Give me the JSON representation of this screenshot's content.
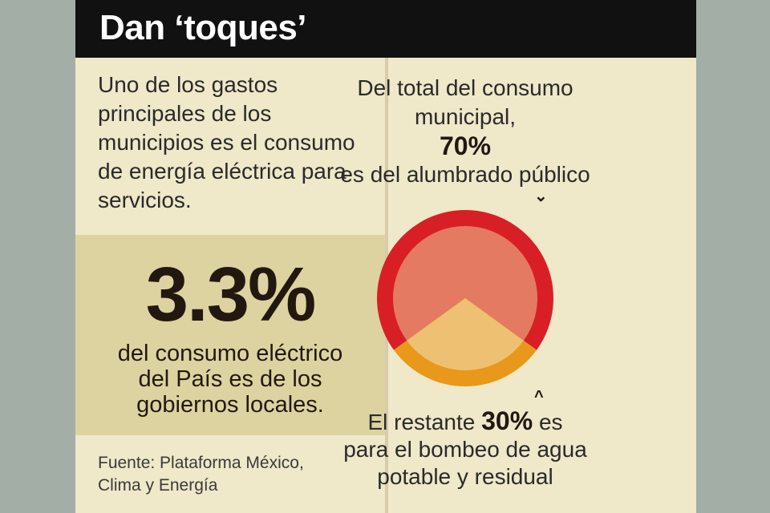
{
  "header": {
    "title": "Dan ‘toques’"
  },
  "intro": {
    "lines": [
      "Uno de los gastos",
      "principales de los",
      "municipios es el consumo",
      "de energía eléctrica para",
      "servicios."
    ]
  },
  "stat": {
    "value": "3.3%",
    "lines": [
      "del consumo eléctrico",
      "del País es de los",
      "gobiernos locales."
    ]
  },
  "source": {
    "lines": [
      "Fuente: Plataforma México,",
      "Clima y Energía"
    ]
  },
  "top_note": {
    "line1": "Del total del consumo",
    "line2": "municipal,",
    "value": "70%",
    "line3": "es del alumbrado público"
  },
  "bottom_note": {
    "prefix": "El restante",
    "value": "30%",
    "suffix": "es",
    "line2": "para el bombeo de agua",
    "line3": "potable y residual"
  },
  "colors": {
    "large_ring": "#d81f26",
    "large_fill": "#e47a62",
    "small_ring": "#e8981a",
    "small_fill": "#eec072",
    "header_bg": "#111111",
    "card_bg": "#efe8c9",
    "stat_bg": "#dcd3a0"
  },
  "chart_data": {
    "type": "pie",
    "slices": [
      {
        "label": "alumbrado público",
        "value": 70
      },
      {
        "label": "bombeo de agua potable y residual",
        "value": 30
      }
    ]
  }
}
